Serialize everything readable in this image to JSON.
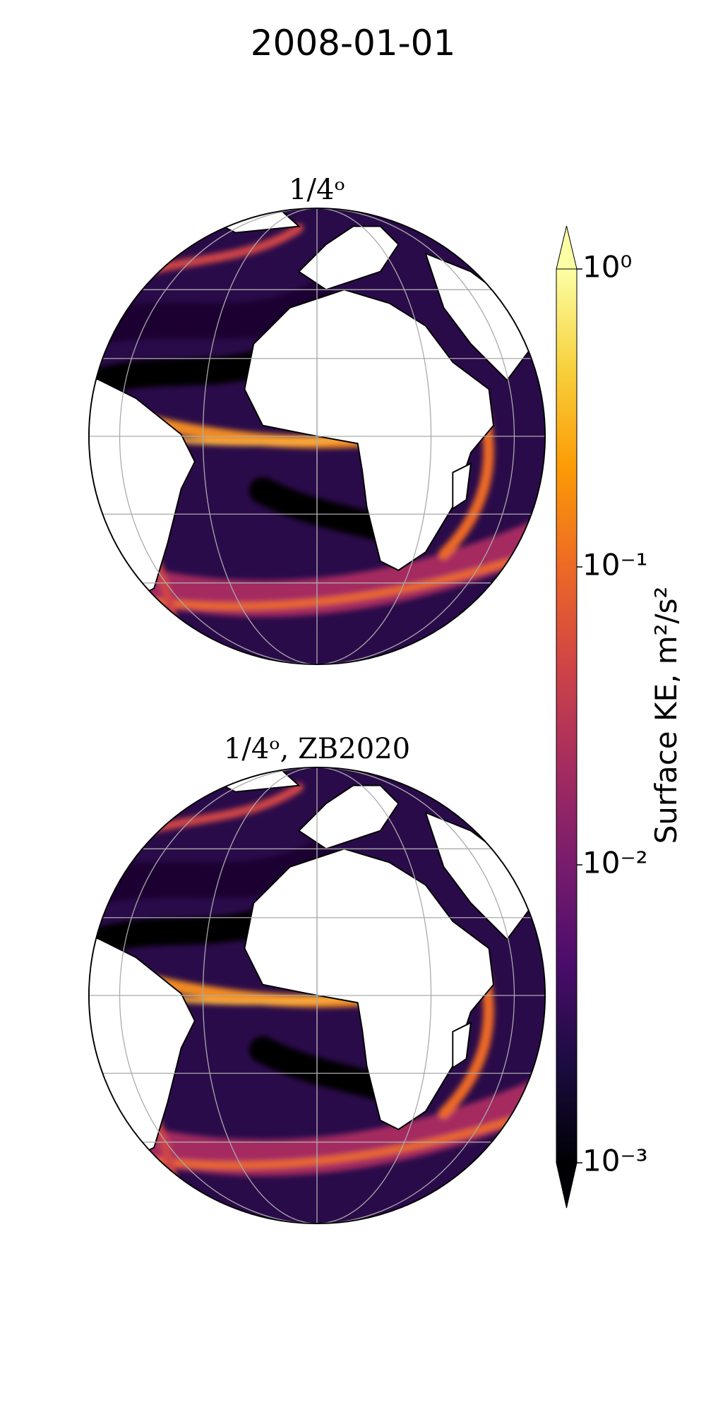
{
  "title": "2008-01-01",
  "panels": [
    {
      "title": "1/4ᵒ"
    },
    {
      "title": "1/4ᵒ, ZB2020"
    }
  ],
  "colorbar": {
    "label": "Surface KE, m²/s²",
    "scale": "log",
    "lim": [
      0.001,
      1
    ],
    "ticks": [
      {
        "value": 1,
        "label": "10⁰"
      },
      {
        "value": 0.1,
        "label": "10⁻¹"
      },
      {
        "value": 0.01,
        "label": "10⁻²"
      },
      {
        "value": 0.001,
        "label": "10⁻³"
      }
    ],
    "colors": [
      "#000004",
      "#1b0c41",
      "#4a0c6b",
      "#781c6d",
      "#a52c60",
      "#cf4446",
      "#ed6925",
      "#fb9b06",
      "#f7d13d",
      "#fcffa4"
    ]
  }
}
